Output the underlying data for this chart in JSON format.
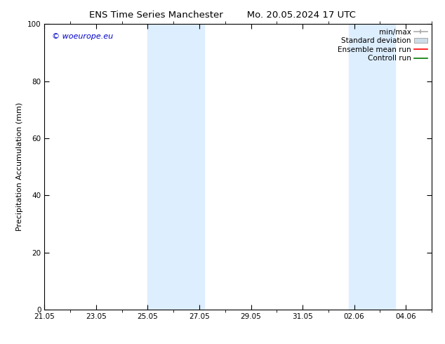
{
  "title_left": "ENS Time Series Manchester",
  "title_right": "Mo. 20.05.2024 17 UTC",
  "ylabel": "Precipitation Accumulation (mm)",
  "ylim": [
    0,
    100
  ],
  "yticks": [
    0,
    20,
    40,
    60,
    80,
    100
  ],
  "xtick_labels": [
    "21.05",
    "23.05",
    "25.05",
    "27.05",
    "29.05",
    "31.05",
    "02.06",
    "04.06"
  ],
  "xtick_positions": [
    0,
    2,
    4,
    6,
    8,
    10,
    12,
    14
  ],
  "x_min": 0,
  "x_max": 15.0,
  "shaded_bands": [
    {
      "x_start": 4.0,
      "x_end": 6.2
    },
    {
      "x_start": 11.8,
      "x_end": 13.6
    }
  ],
  "shade_color": "#ddeeff",
  "watermark_text": "© woeurope.eu",
  "watermark_color": "#0000cc",
  "legend_labels": [
    "min/max",
    "Standard deviation",
    "Ensemble mean run",
    "Controll run"
  ],
  "legend_colors": [
    "#aaaaaa",
    "#ccdde8",
    "#ff0000",
    "#007700"
  ],
  "bg_color": "#ffffff",
  "font_family": "DejaVu Sans",
  "title_fontsize": 9.5,
  "axis_label_fontsize": 8,
  "tick_fontsize": 7.5,
  "legend_fontsize": 7.5
}
